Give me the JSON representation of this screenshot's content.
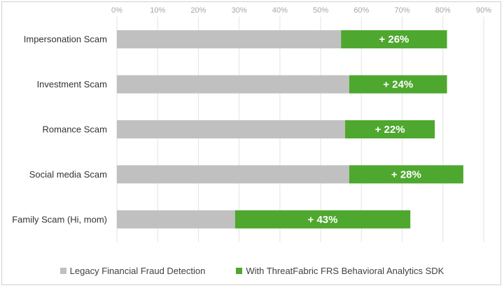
{
  "chart_data": {
    "type": "bar",
    "orientation": "horizontal",
    "stacked": true,
    "categories": [
      "Impersonation Scam",
      "Investment Scam",
      "Romance Scam",
      "Social media Scam",
      "Family Scam (Hi, mom)"
    ],
    "series": [
      {
        "name": "Legacy Financial Fraud Detection",
        "color": "#c0c0c0",
        "values": [
          55,
          57,
          56,
          57,
          29
        ]
      },
      {
        "name": "With ThreatFabric FRS Behavioral Analytics SDK",
        "color": "#4ea72e",
        "values": [
          26,
          24,
          22,
          28,
          43
        ],
        "labels": [
          "+ 26%",
          "+ 24%",
          "+ 22%",
          "+ 28%",
          "+ 43%"
        ]
      }
    ],
    "xlim": [
      0,
      90
    ],
    "x_ticks": [
      "0%",
      "10%",
      "20%",
      "30%",
      "40%",
      "50%",
      "60%",
      "70%",
      "80%",
      "90%"
    ],
    "x_axis_position": "top",
    "grid": true,
    "legend_position": "bottom"
  }
}
